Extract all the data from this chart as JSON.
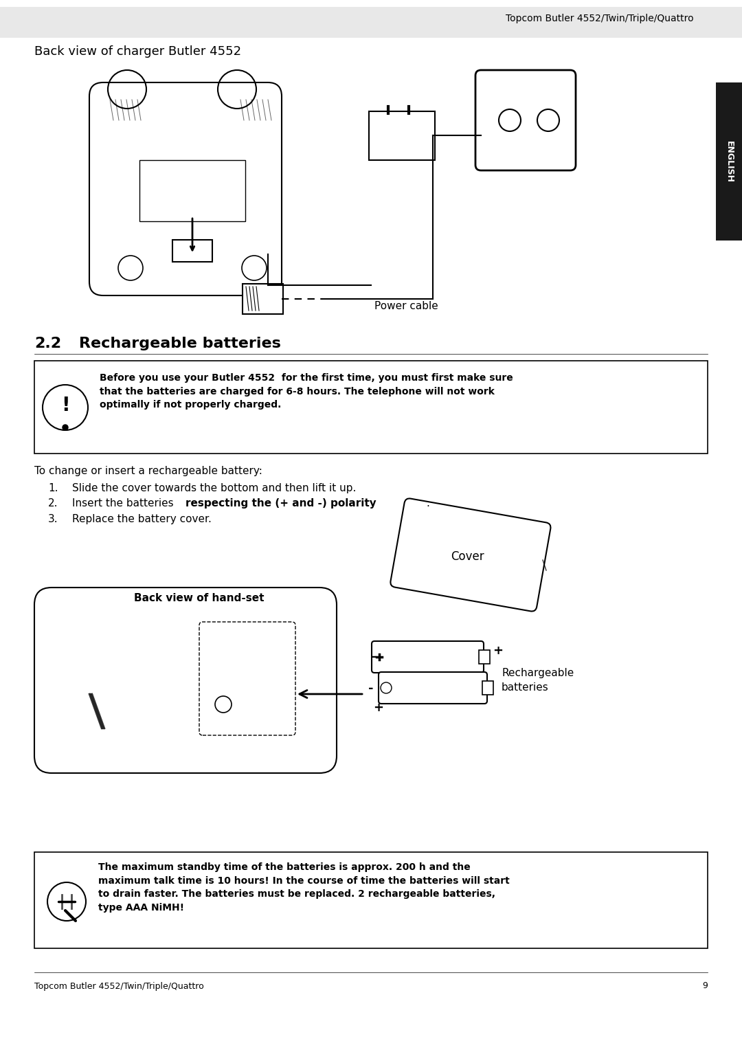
{
  "header_text": "Topcom Butler 4552/Twin/Triple/Quattro",
  "header_bg": "#e8e8e8",
  "section_title_top": "Back view of charger Butler 4552",
  "power_cable_label": "Power cable",
  "section_22_num": "2.2",
  "section_22_title": "Rechargeable batteries",
  "warning_text": "Before you use your Butler 4552  for the first time, you must first make sure\nthat the batteries are charged for 6-8 hours. The telephone will not work\noptimally if not properly charged.",
  "instruction_intro": "To change or insert a rechargeable battery:",
  "steps": [
    "Slide the cover towards the bottom and then lift it up.",
    "Insert the batteries **respecting the (+ and -) polarity**.",
    "Replace the battery cover."
  ],
  "cover_label": "Cover",
  "handset_label": "Back view of hand-set",
  "rechargeable_label": "Rechargeable\nbatteries",
  "footer_text": "Topcom Butler 4552/Twin/Triple/Quattro",
  "footer_page": "9",
  "tab_text": "ENGLISH",
  "bottom_warning": "The maximum standby time of the batteries is approx. 200 h and the\nmaximum talk time is 10 hours! In the course of time the batteries will start\nto drain faster. The batteries must be replaced. 2 rechargeable batteries,\ntype AAA NiMH!",
  "bg_color": "#ffffff",
  "text_color": "#000000",
  "border_color": "#000000"
}
